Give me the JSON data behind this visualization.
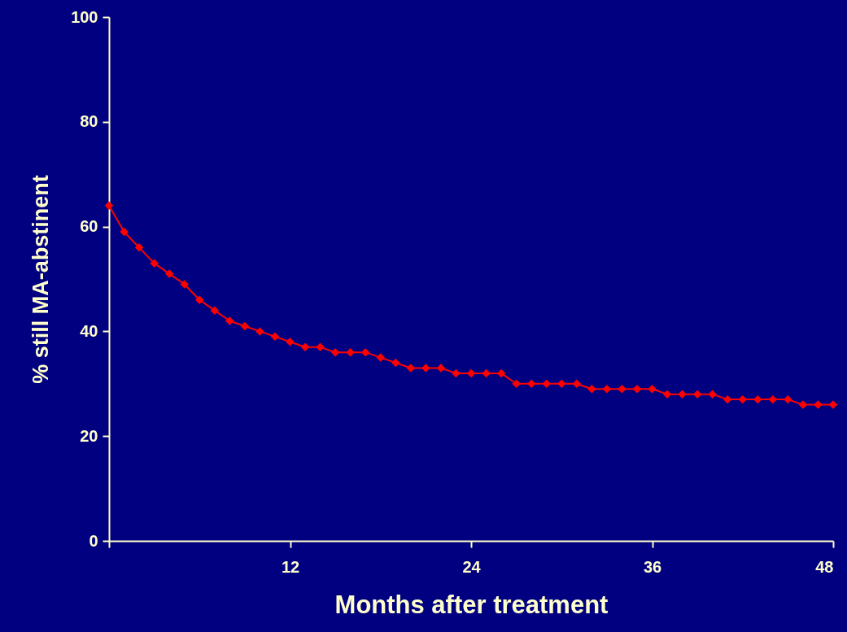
{
  "chart_data": {
    "type": "line",
    "xlabel": "Months after treatment",
    "ylabel": "% still MA-abstinent",
    "x": [
      0,
      1,
      2,
      3,
      4,
      5,
      6,
      7,
      8,
      9,
      10,
      11,
      12,
      13,
      14,
      15,
      16,
      17,
      18,
      19,
      20,
      21,
      22,
      23,
      24,
      25,
      26,
      27,
      28,
      29,
      30,
      31,
      32,
      33,
      34,
      35,
      36,
      37,
      38,
      39,
      40,
      41,
      42,
      43,
      44,
      45,
      46,
      47,
      48
    ],
    "series": [
      {
        "color": "#ff0000",
        "values": [
          64,
          59,
          56,
          53,
          51,
          49,
          46,
          44,
          42,
          41,
          40,
          39,
          38,
          37,
          37,
          36,
          36,
          36,
          35,
          34,
          33,
          33,
          33,
          32,
          32,
          32,
          32,
          30,
          30,
          30,
          30,
          30,
          29,
          29,
          29,
          29,
          29,
          28,
          28,
          28,
          28,
          27,
          27,
          27,
          27,
          27,
          26,
          26,
          26
        ]
      }
    ],
    "xlim": [
      0,
      48
    ],
    "xticks": [
      {
        "value": 0,
        "label": null
      },
      12,
      24,
      36,
      48
    ],
    "ylim": [
      0,
      100
    ],
    "yticks": [
      0,
      20,
      40,
      60,
      80,
      100
    ],
    "grid": false,
    "marker": "diamond",
    "line_style": "solid"
  }
}
